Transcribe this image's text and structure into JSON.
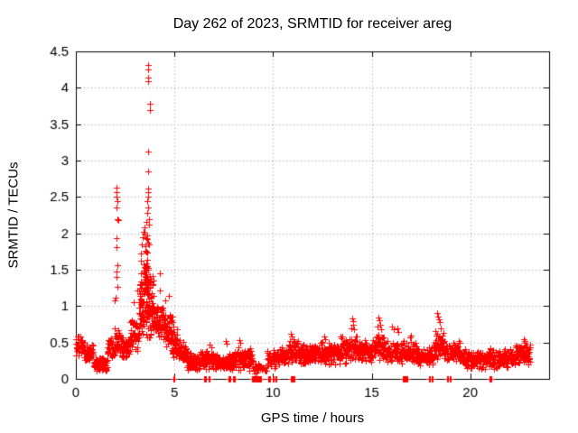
{
  "chart_data": {
    "type": "scatter",
    "title": "Day 262 of 2023, SRMTID for receiver areg",
    "xlabel": "GPS time / hours",
    "ylabel": "SRMTID / TECUs",
    "xlim": [
      0,
      24
    ],
    "ylim": [
      0,
      4.5
    ],
    "xticks": [
      0,
      5,
      10,
      15,
      20
    ],
    "yticks": [
      0,
      0.5,
      1,
      1.5,
      2,
      2.5,
      3,
      3.5,
      4,
      4.5
    ],
    "grid": true,
    "legend": "none",
    "marker": {
      "shape": "plus",
      "color": "#ff0000",
      "size": 7
    },
    "band_segment_format": "x_start_hours, x_end_hours, y_min_tecus, y_max_tecus, n_points",
    "band_segments": [
      [
        0.0,
        0.4,
        0.3,
        0.6,
        40
      ],
      [
        0.4,
        0.9,
        0.2,
        0.5,
        50
      ],
      [
        0.9,
        1.6,
        0.1,
        0.33,
        70
      ],
      [
        1.6,
        1.98,
        0.25,
        0.62,
        40
      ],
      [
        1.98,
        2.3,
        0.35,
        0.72,
        35
      ],
      [
        2.3,
        2.75,
        0.27,
        0.58,
        45
      ],
      [
        2.75,
        3.2,
        0.35,
        0.85,
        50
      ],
      [
        3.2,
        3.45,
        0.5,
        1.5,
        45
      ],
      [
        3.45,
        3.7,
        0.55,
        2.05,
        70
      ],
      [
        3.55,
        3.95,
        0.5,
        1.6,
        70
      ],
      [
        3.95,
        4.45,
        0.55,
        1.05,
        60
      ],
      [
        4.45,
        4.85,
        0.4,
        0.95,
        50
      ],
      [
        4.85,
        5.15,
        0.25,
        0.72,
        40
      ],
      [
        5.15,
        5.6,
        0.2,
        0.55,
        45
      ],
      [
        5.6,
        6.3,
        0.1,
        0.38,
        70
      ],
      [
        6.3,
        7.1,
        0.1,
        0.4,
        75
      ],
      [
        7.1,
        7.7,
        0.1,
        0.36,
        60
      ],
      [
        7.7,
        8.25,
        0.08,
        0.4,
        55
      ],
      [
        8.25,
        8.95,
        0.1,
        0.45,
        70
      ],
      [
        8.95,
        9.25,
        0.05,
        0.28,
        16
      ],
      [
        9.25,
        9.7,
        0.08,
        0.25,
        14
      ],
      [
        9.7,
        10.2,
        0.12,
        0.42,
        45
      ],
      [
        10.2,
        10.7,
        0.15,
        0.48,
        50
      ],
      [
        10.7,
        11.3,
        0.18,
        0.58,
        60
      ],
      [
        11.3,
        12.3,
        0.18,
        0.5,
        95
      ],
      [
        12.3,
        13.4,
        0.18,
        0.52,
        105
      ],
      [
        13.4,
        14.3,
        0.2,
        0.62,
        90
      ],
      [
        14.3,
        15.1,
        0.2,
        0.55,
        80
      ],
      [
        15.1,
        15.7,
        0.22,
        0.65,
        60
      ],
      [
        15.7,
        16.5,
        0.18,
        0.55,
        75
      ],
      [
        16.5,
        17.4,
        0.18,
        0.55,
        85
      ],
      [
        17.4,
        18.15,
        0.15,
        0.45,
        70
      ],
      [
        18.15,
        18.7,
        0.22,
        0.65,
        55
      ],
      [
        18.7,
        19.5,
        0.18,
        0.52,
        75
      ],
      [
        19.5,
        21.0,
        0.13,
        0.42,
        140
      ],
      [
        21.0,
        22.3,
        0.13,
        0.45,
        120
      ],
      [
        22.3,
        23.05,
        0.17,
        0.52,
        70
      ]
    ],
    "peak_points": [
      [
        2.07,
        2.63
      ],
      [
        2.08,
        2.57
      ],
      [
        2.07,
        2.51
      ],
      [
        2.09,
        2.44
      ],
      [
        2.06,
        2.35
      ],
      [
        2.1,
        2.19
      ],
      [
        2.13,
        2.18
      ],
      [
        2.06,
        1.94
      ],
      [
        2.07,
        1.81
      ],
      [
        2.1,
        1.56
      ],
      [
        2.07,
        1.48
      ],
      [
        2.05,
        1.4
      ],
      [
        2.11,
        1.26
      ],
      [
        2.02,
        1.12
      ],
      [
        1.98,
        1.08
      ],
      [
        3.66,
        4.31
      ],
      [
        3.66,
        4.25
      ],
      [
        3.66,
        4.14
      ],
      [
        3.67,
        4.09
      ],
      [
        3.76,
        3.78
      ],
      [
        3.75,
        3.69
      ],
      [
        3.68,
        3.12
      ],
      [
        3.67,
        2.85
      ],
      [
        3.65,
        2.62
      ],
      [
        3.66,
        2.56
      ],
      [
        3.67,
        2.5
      ],
      [
        3.64,
        2.44
      ],
      [
        3.68,
        2.35
      ],
      [
        3.63,
        2.28
      ],
      [
        3.7,
        2.2
      ],
      [
        3.72,
        2.12
      ],
      [
        3.58,
        2.16
      ],
      [
        3.5,
        2.08
      ],
      [
        3.42,
        2.02
      ],
      [
        3.38,
        1.95
      ],
      [
        3.35,
        1.85
      ],
      [
        3.3,
        1.72
      ],
      [
        3.32,
        1.62
      ],
      [
        3.28,
        1.45
      ],
      [
        3.24,
        1.3
      ],
      [
        3.12,
        1.22
      ],
      [
        2.95,
        1.05
      ],
      [
        4.26,
        1.45
      ],
      [
        4.28,
        1.22
      ],
      [
        4.7,
        1.14
      ],
      [
        4.55,
        1.08
      ],
      [
        4.88,
        0.85
      ],
      [
        4.9,
        0.78
      ],
      [
        4.93,
        0.72
      ],
      [
        4.95,
        0.65
      ],
      [
        4.98,
        0.58
      ],
      [
        5.01,
        0.52
      ],
      [
        5.04,
        0.46
      ],
      [
        5.07,
        0.4
      ],
      [
        6.8,
        0.47
      ],
      [
        6.85,
        0.44
      ],
      [
        7.6,
        0.52
      ],
      [
        7.63,
        0.48
      ],
      [
        8.3,
        0.53
      ],
      [
        8.34,
        0.5
      ],
      [
        10.9,
        0.62
      ],
      [
        10.95,
        0.58
      ],
      [
        11.05,
        0.55
      ],
      [
        12.6,
        0.58
      ],
      [
        12.64,
        0.55
      ],
      [
        13.5,
        0.58
      ],
      [
        13.98,
        0.7
      ],
      [
        14.02,
        0.83
      ],
      [
        14.05,
        0.79
      ],
      [
        14.08,
        0.74
      ],
      [
        14.12,
        0.68
      ],
      [
        15.3,
        0.72
      ],
      [
        15.35,
        0.84
      ],
      [
        15.4,
        0.8
      ],
      [
        15.45,
        0.75
      ],
      [
        15.5,
        0.68
      ],
      [
        16.05,
        0.72
      ],
      [
        16.1,
        0.68
      ],
      [
        16.3,
        0.7
      ],
      [
        16.35,
        0.65
      ],
      [
        16.95,
        0.57
      ],
      [
        17.0,
        0.6
      ],
      [
        18.25,
        0.66
      ],
      [
        18.3,
        0.9
      ],
      [
        18.35,
        0.86
      ],
      [
        18.4,
        0.82
      ],
      [
        18.45,
        0.78
      ],
      [
        18.5,
        0.7
      ],
      [
        19.4,
        0.52
      ],
      [
        19.45,
        0.5
      ],
      [
        22.7,
        0.55
      ],
      [
        22.75,
        0.52
      ]
    ],
    "zero_runs": [
      [
        4.93,
        5.03
      ],
      [
        6.52,
        6.62
      ],
      [
        6.72,
        6.8
      ],
      [
        7.72,
        7.84
      ],
      [
        7.95,
        8.07
      ],
      [
        8.93,
        9.42
      ],
      [
        9.74,
        9.86
      ],
      [
        9.97,
        10.06
      ],
      [
        10.12,
        10.18
      ],
      [
        10.9,
        11.12
      ],
      [
        16.57,
        16.67
      ],
      [
        16.72,
        16.81
      ],
      [
        17.92,
        17.99
      ],
      [
        18.04,
        18.11
      ],
      [
        18.84,
        18.91
      ],
      [
        18.98,
        19.05
      ],
      [
        20.98,
        21.07
      ]
    ],
    "colors": {
      "marker": "#ff0000",
      "grid": "#9c9c9c",
      "axis": "#000000",
      "background": "#ffffff",
      "text": "#000000"
    }
  }
}
